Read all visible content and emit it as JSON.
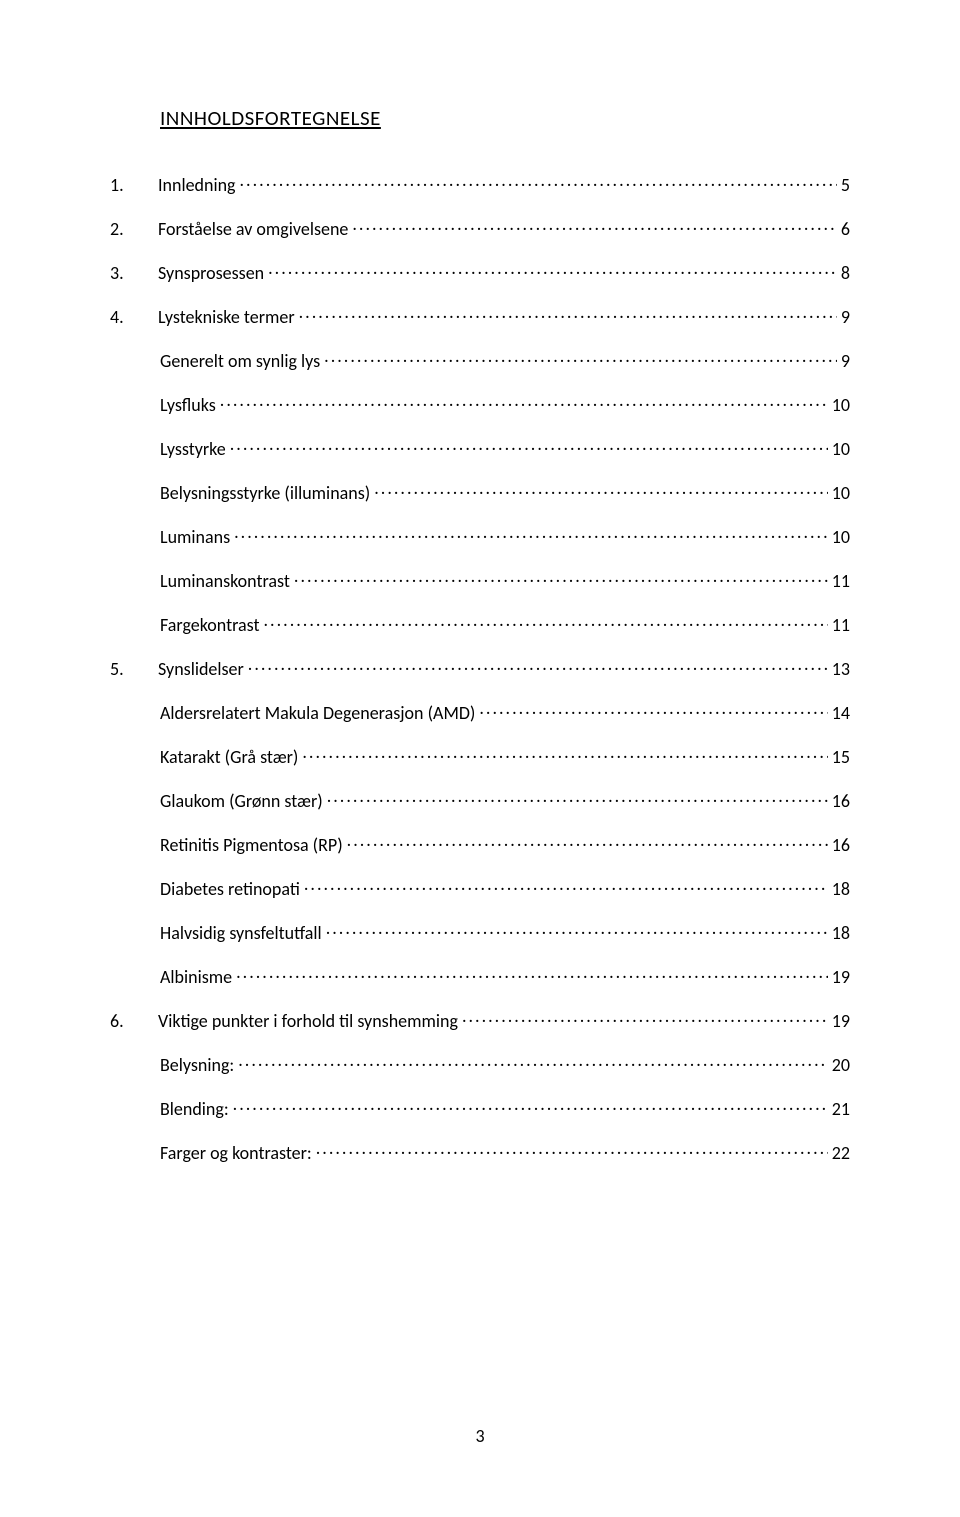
{
  "title": "INNHOLDSFORTEGNELSE",
  "toc": [
    {
      "level": "chapter",
      "num": "1.",
      "label": "Innledning",
      "page": "5"
    },
    {
      "level": "chapter",
      "num": "2.",
      "label": "Forståelse av omgivelsene",
      "page": "6"
    },
    {
      "level": "chapter",
      "num": "3.",
      "label": "Synsprosessen",
      "page": "8"
    },
    {
      "level": "chapter",
      "num": "4.",
      "label": "Lystekniske termer",
      "page": "9"
    },
    {
      "level": "sub",
      "num": "",
      "label": "Generelt om synlig lys",
      "page": "9"
    },
    {
      "level": "sub",
      "num": "",
      "label": "Lysfluks",
      "page": "10"
    },
    {
      "level": "sub",
      "num": "",
      "label": "Lysstyrke",
      "page": "10"
    },
    {
      "level": "sub",
      "num": "",
      "label": "Belysningsstyrke (illuminans)",
      "page": "10"
    },
    {
      "level": "sub",
      "num": "",
      "label": "Luminans",
      "page": "10"
    },
    {
      "level": "sub",
      "num": "",
      "label": "Luminanskontrast",
      "page": "11"
    },
    {
      "level": "sub",
      "num": "",
      "label": "Fargekontrast",
      "page": "11"
    },
    {
      "level": "chapter",
      "num": "5.",
      "label": "Synslidelser",
      "page": "13"
    },
    {
      "level": "sub",
      "num": "",
      "label": "Aldersrelatert Makula Degenerasjon (AMD)",
      "page": "14"
    },
    {
      "level": "sub",
      "num": "",
      "label": "Katarakt (Grå stær)",
      "page": "15"
    },
    {
      "level": "sub",
      "num": "",
      "label": "Glaukom (Grønn stær)",
      "page": "16"
    },
    {
      "level": "sub",
      "num": "",
      "label": "Retinitis Pigmentosa (RP)",
      "page": "16"
    },
    {
      "level": "sub",
      "num": "",
      "label": "Diabetes retinopati",
      "page": "18"
    },
    {
      "level": "sub",
      "num": "",
      "label": "Halvsidig synsfeltutfall",
      "page": "18"
    },
    {
      "level": "sub",
      "num": "",
      "label": "Albinisme",
      "page": "19"
    },
    {
      "level": "chapter",
      "num": "6.",
      "label": "Viktige punkter i forhold til synshemming",
      "page": "19"
    },
    {
      "level": "sub",
      "num": "",
      "label": "Belysning:",
      "page": "20"
    },
    {
      "level": "sub",
      "num": "",
      "label": "Blending:",
      "page": "21"
    },
    {
      "level": "sub",
      "num": "",
      "label": "Farger og kontraster:",
      "page": "22"
    }
  ],
  "page_number": "3"
}
